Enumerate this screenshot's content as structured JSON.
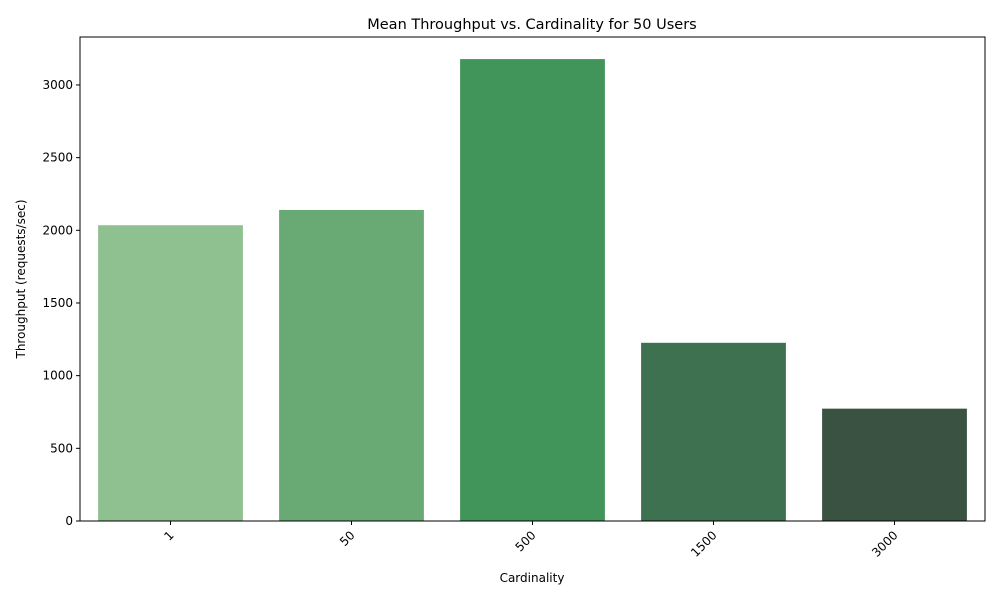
{
  "chart_data": {
    "type": "bar",
    "title": "Mean Throughput vs. Cardinality for 50 Users",
    "xlabel": "Cardinality",
    "ylabel": "Throughput (requests/sec)",
    "categories": [
      "1",
      "50",
      "500",
      "1500",
      "3000"
    ],
    "values": [
      2035,
      2140,
      3178,
      1226,
      773
    ],
    "colors": [
      "#8fc08f",
      "#69aa74",
      "#42955a",
      "#3e7150",
      "#3a5241"
    ],
    "ylim": [
      0,
      3330
    ],
    "yticks": [
      0,
      500,
      1000,
      1500,
      2000,
      2500,
      3000
    ],
    "xtick_rotation": 45,
    "grid": false,
    "legend": "none"
  }
}
